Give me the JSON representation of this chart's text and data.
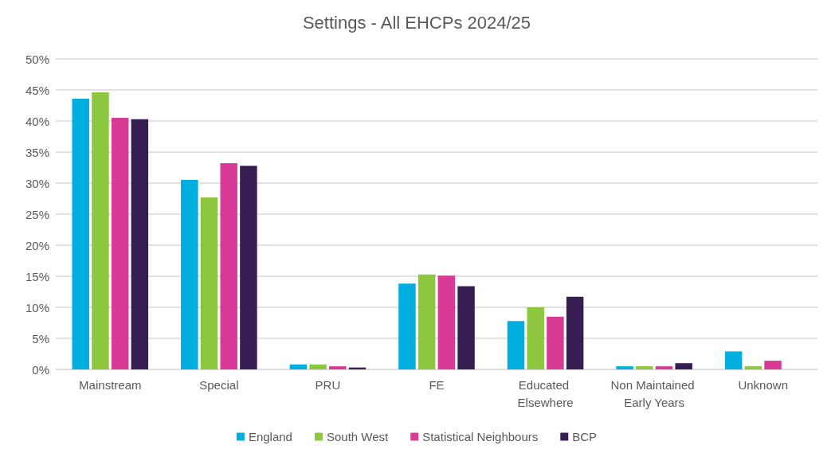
{
  "chart_data": {
    "type": "bar",
    "title": "Settings - All EHCPs 2024/25",
    "categories": [
      "Mainstream",
      "Special",
      "PRU",
      "FE",
      "Educated Elsewhere",
      "Non Maintained Early Years",
      "Unknown"
    ],
    "series": [
      {
        "name": "England",
        "color": "#00aee0",
        "values": [
          43.6,
          30.5,
          0.8,
          13.8,
          7.8,
          0.5,
          2.9
        ]
      },
      {
        "name": "South West",
        "color": "#8dc63f",
        "values": [
          44.6,
          27.7,
          0.8,
          15.3,
          10.0,
          0.5,
          0.5
        ]
      },
      {
        "name": "Statistical Neighbours",
        "color": "#d93a96",
        "values": [
          40.5,
          33.2,
          0.5,
          15.1,
          8.5,
          0.5,
          1.4
        ]
      },
      {
        "name": "BCP",
        "color": "#361d52",
        "values": [
          40.3,
          32.8,
          0.3,
          13.4,
          11.7,
          1.0,
          null
        ]
      }
    ],
    "ylim": [
      0,
      50
    ],
    "yticks": [
      {
        "value": 0,
        "label": "0%"
      },
      {
        "value": 5,
        "label": "5%"
      },
      {
        "value": 10,
        "label": "10%"
      },
      {
        "value": 15,
        "label": "15%"
      },
      {
        "value": 20,
        "label": "20%"
      },
      {
        "value": 25,
        "label": "25%"
      },
      {
        "value": 30,
        "label": "30%"
      },
      {
        "value": 35,
        "label": "35%"
      },
      {
        "value": 40,
        "label": "40%"
      },
      {
        "value": 45,
        "label": "45%"
      },
      {
        "value": 50,
        "label": "50%"
      }
    ],
    "grid": "y",
    "legend": "bottom"
  }
}
